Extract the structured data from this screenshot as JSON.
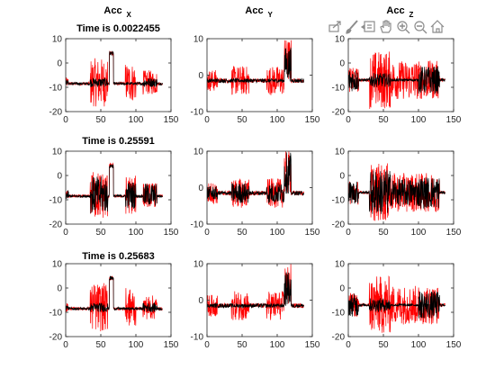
{
  "colors": {
    "red_series": "#ff0000",
    "black_series": "#000000",
    "axes": "#262626",
    "toolbar_icon": "#8c8c8c"
  },
  "toolbar": {
    "icons": [
      "export-icon",
      "brush-icon",
      "data-tips-icon",
      "pan-hand-icon",
      "zoom-in-icon",
      "zoom-out-icon",
      "home-icon"
    ]
  },
  "column_titles": [
    {
      "main": "Acc",
      "sub": "X"
    },
    {
      "main": "Acc",
      "sub": "Y"
    },
    {
      "main": "Acc",
      "sub": "Z"
    }
  ],
  "row_titles": [
    "Time is 0.0022455",
    "Time is 0.25591",
    "Time is 0.25683"
  ],
  "chart_data": [
    {
      "type": "line",
      "row": 0,
      "col": 0,
      "title": "Time is 0.0022455",
      "xlim": [
        0,
        150
      ],
      "ylim": [
        -20,
        10
      ],
      "xticks": [
        0,
        50,
        100,
        150
      ],
      "yticks": [
        -20,
        -10,
        0,
        10
      ],
      "baseline": -8.5,
      "series": [
        {
          "color": "red",
          "segments": [
            [
              0,
              4,
              -8,
              2
            ],
            [
              35,
              60,
              -8,
              10
            ],
            [
              62,
              68,
              4,
              1
            ],
            [
              85,
              100,
              -8,
              8
            ],
            [
              110,
              130,
              -8,
              5
            ]
          ]
        },
        {
          "color": "black",
          "segments": [
            [
              0,
              4,
              -8,
              1
            ],
            [
              35,
              60,
              -8,
              2
            ],
            [
              62,
              68,
              4,
              1
            ],
            [
              110,
              130,
              -8,
              2
            ]
          ]
        }
      ]
    },
    {
      "type": "line",
      "row": 0,
      "col": 1,
      "title": "",
      "xlim": [
        0,
        150
      ],
      "ylim": [
        -10,
        10
      ],
      "xticks": [
        0,
        50,
        100,
        150
      ],
      "yticks": [
        -10,
        0,
        10
      ],
      "baseline": -1.5,
      "series": [
        {
          "color": "red",
          "segments": [
            [
              0,
              15,
              -1.5,
              3
            ],
            [
              35,
              60,
              -1.5,
              4
            ],
            [
              85,
              110,
              -1.5,
              4
            ],
            [
              110,
              120,
              4,
              6
            ]
          ]
        },
        {
          "color": "black",
          "segments": [
            [
              110,
              120,
              3,
              5
            ]
          ]
        }
      ]
    },
    {
      "type": "line",
      "row": 0,
      "col": 2,
      "title": "",
      "xlim": [
        0,
        150
      ],
      "ylim": [
        -20,
        10
      ],
      "xticks": [
        0,
        50,
        100,
        150
      ],
      "yticks": [
        -20,
        -10,
        0,
        10
      ],
      "baseline": -7,
      "series": [
        {
          "color": "red",
          "segments": [
            [
              0,
              15,
              -7,
              5
            ],
            [
              30,
              60,
              -7,
              12
            ],
            [
              60,
              100,
              -7,
              8
            ],
            [
              100,
              130,
              -7,
              8
            ]
          ]
        },
        {
          "color": "black",
          "segments": [
            [
              0,
              15,
              -7,
              5
            ],
            [
              30,
              60,
              -7,
              3
            ],
            [
              100,
              130,
              -7,
              6
            ]
          ]
        }
      ]
    },
    {
      "type": "line",
      "row": 1,
      "col": 0,
      "title": "Time is 0.25591",
      "xlim": [
        0,
        150
      ],
      "ylim": [
        -20,
        10
      ],
      "xticks": [
        0,
        50,
        100,
        150
      ],
      "yticks": [
        -20,
        -10,
        0,
        10
      ],
      "baseline": -8.5,
      "series": [
        {
          "color": "red",
          "segments": [
            [
              0,
              4,
              -8,
              2
            ],
            [
              35,
              60,
              -8,
              10
            ],
            [
              62,
              68,
              4,
              1
            ],
            [
              85,
              100,
              -8,
              8
            ],
            [
              110,
              130,
              -8,
              5
            ]
          ]
        },
        {
          "color": "black",
          "segments": [
            [
              0,
              4,
              -8,
              2
            ],
            [
              35,
              60,
              -8,
              8
            ],
            [
              62,
              68,
              4,
              1
            ],
            [
              85,
              100,
              -8,
              6
            ],
            [
              110,
              130,
              -8,
              5
            ]
          ]
        }
      ]
    },
    {
      "type": "line",
      "row": 1,
      "col": 1,
      "title": "",
      "xlim": [
        0,
        150
      ],
      "ylim": [
        -10,
        10
      ],
      "xticks": [
        0,
        50,
        100,
        150
      ],
      "yticks": [
        -10,
        0,
        10
      ],
      "baseline": -1.5,
      "series": [
        {
          "color": "red",
          "segments": [
            [
              0,
              15,
              -1.5,
              3
            ],
            [
              35,
              60,
              -1.5,
              4
            ],
            [
              85,
              110,
              -1.5,
              4
            ],
            [
              110,
              120,
              4,
              6
            ]
          ]
        },
        {
          "color": "black",
          "segments": [
            [
              0,
              15,
              -1.5,
              2
            ],
            [
              35,
              60,
              -1.5,
              3
            ],
            [
              85,
              110,
              -1.5,
              3
            ],
            [
              110,
              120,
              4,
              6
            ]
          ]
        }
      ]
    },
    {
      "type": "line",
      "row": 1,
      "col": 2,
      "title": "",
      "xlim": [
        0,
        150
      ],
      "ylim": [
        -20,
        10
      ],
      "xticks": [
        0,
        50,
        100,
        150
      ],
      "yticks": [
        -20,
        -10,
        0,
        10
      ],
      "baseline": -7,
      "series": [
        {
          "color": "red",
          "segments": [
            [
              0,
              15,
              -7,
              5
            ],
            [
              30,
              60,
              -7,
              12
            ],
            [
              60,
              100,
              -7,
              8
            ],
            [
              100,
              130,
              -7,
              8
            ]
          ]
        },
        {
          "color": "black",
          "segments": [
            [
              0,
              15,
              -7,
              5
            ],
            [
              30,
              60,
              -7,
              10
            ],
            [
              60,
              100,
              -7,
              6
            ],
            [
              100,
              130,
              -7,
              7
            ]
          ]
        }
      ]
    },
    {
      "type": "line",
      "row": 2,
      "col": 0,
      "title": "Time is 0.25683",
      "xlim": [
        0,
        150
      ],
      "ylim": [
        -20,
        10
      ],
      "xticks": [
        0,
        50,
        100,
        150
      ],
      "yticks": [
        -20,
        -10,
        0,
        10
      ],
      "baseline": -8.5,
      "series": [
        {
          "color": "red",
          "segments": [
            [
              0,
              4,
              -8,
              2
            ],
            [
              35,
              60,
              -8,
              10
            ],
            [
              62,
              68,
              4,
              1
            ],
            [
              85,
              100,
              -8,
              8
            ],
            [
              110,
              130,
              -8,
              5
            ]
          ]
        },
        {
          "color": "black",
          "segments": [
            [
              0,
              4,
              -8,
              1
            ],
            [
              35,
              60,
              -8,
              2
            ],
            [
              62,
              68,
              4,
              1
            ],
            [
              110,
              130,
              -8,
              2
            ]
          ]
        }
      ]
    },
    {
      "type": "line",
      "row": 2,
      "col": 1,
      "title": "",
      "xlim": [
        0,
        150
      ],
      "ylim": [
        -10,
        10
      ],
      "xticks": [
        0,
        50,
        100,
        150
      ],
      "yticks": [
        -10,
        0,
        10
      ],
      "baseline": -1.5,
      "series": [
        {
          "color": "red",
          "segments": [
            [
              0,
              15,
              -1.5,
              3
            ],
            [
              35,
              60,
              -1.5,
              4
            ],
            [
              85,
              110,
              -1.5,
              4
            ],
            [
              110,
              120,
              4,
              6
            ]
          ]
        },
        {
          "color": "black",
          "segments": [
            [
              110,
              120,
              3,
              5
            ]
          ]
        }
      ]
    },
    {
      "type": "line",
      "row": 2,
      "col": 2,
      "title": "",
      "xlim": [
        0,
        150
      ],
      "ylim": [
        -20,
        10
      ],
      "xticks": [
        0,
        50,
        100,
        150
      ],
      "yticks": [
        -20,
        -10,
        0,
        10
      ],
      "baseline": -7,
      "series": [
        {
          "color": "red",
          "segments": [
            [
              0,
              15,
              -7,
              5
            ],
            [
              30,
              60,
              -7,
              12
            ],
            [
              60,
              100,
              -7,
              8
            ],
            [
              100,
              130,
              -7,
              8
            ]
          ]
        },
        {
          "color": "black",
          "segments": [
            [
              0,
              15,
              -7,
              5
            ],
            [
              30,
              60,
              -7,
              3
            ],
            [
              100,
              130,
              -7,
              6
            ]
          ]
        }
      ]
    }
  ]
}
